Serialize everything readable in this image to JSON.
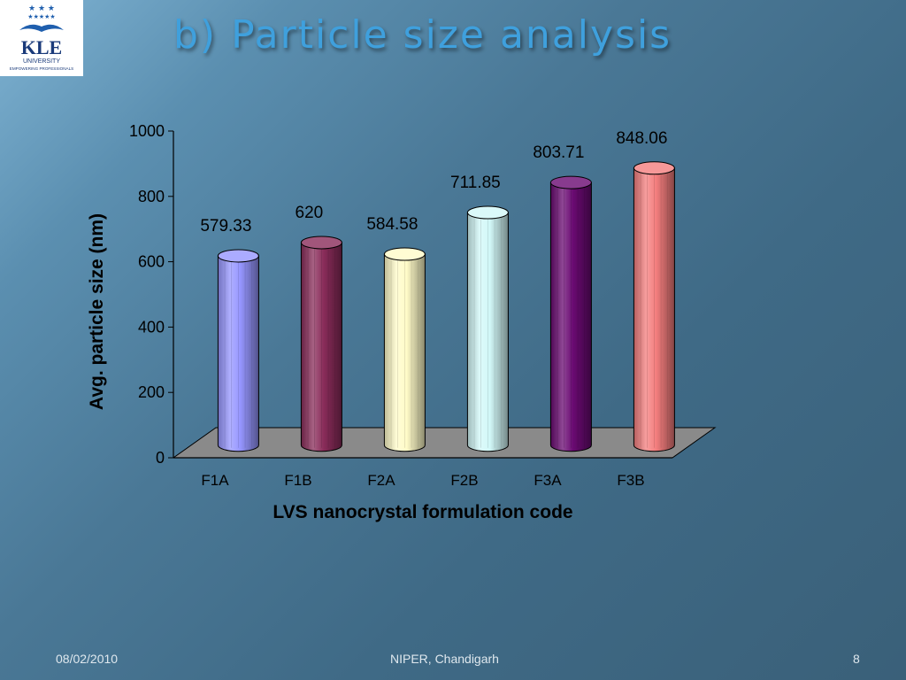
{
  "slide": {
    "title": "b) Particle size analysis",
    "footer_date": "08/02/2010",
    "footer_center": "NIPER, Chandigarh",
    "page_number": "8"
  },
  "logo": {
    "text_main": "KLE",
    "text_sub": "UNIVERSITY",
    "tagline": "EMPOWERING PROFESSIONALS"
  },
  "chart_data": {
    "type": "bar",
    "categories": [
      "F1A",
      "F1B",
      "F2A",
      "F2B",
      "F3A",
      "F3B"
    ],
    "values": [
      579.33,
      620,
      584.58,
      711.85,
      803.71,
      848.06
    ],
    "data_labels": [
      "579.33",
      "620",
      "584.58",
      "711.85",
      "803.71",
      "848.06"
    ],
    "colors": [
      "#9696ff",
      "#8a2c5a",
      "#fffbc8",
      "#d2f8f8",
      "#6a0a72",
      "#f47e7e"
    ],
    "xlabel": "LVS nanocrystal formulation code",
    "ylabel": "Avg. particle size (nm)",
    "ylim": [
      0,
      1000
    ],
    "yticks": [
      0,
      200,
      400,
      600,
      800,
      1000
    ],
    "grid": false,
    "legend": "none",
    "style": "3d-cylinder"
  }
}
